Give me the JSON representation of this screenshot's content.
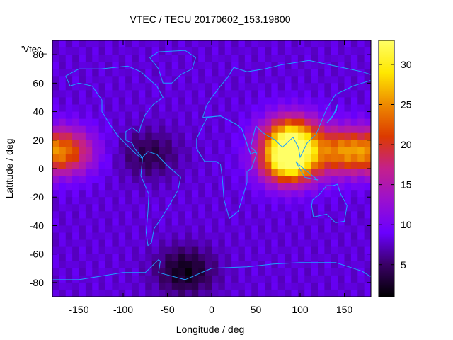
{
  "chart_data": {
    "type": "heatmap",
    "title": "VTEC / TECU 20170602_153.19800",
    "xlabel": "Longitude / deg",
    "ylabel": "Latitude / deg",
    "corner_label": "'Vtec_",
    "xlim": [
      -180,
      180
    ],
    "ylim": [
      -90,
      90
    ],
    "x_ticks": [
      -150,
      -100,
      -50,
      0,
      50,
      100,
      150
    ],
    "y_ticks": [
      -80,
      -60,
      -40,
      -20,
      0,
      20,
      40,
      60,
      80
    ],
    "colorbar": {
      "range": [
        1,
        33
      ],
      "ticks": [
        5,
        10,
        15,
        20,
        25,
        30
      ],
      "palette": [
        "#000000",
        "#3a0066",
        "#6a00ff",
        "#9a10cf",
        "#c4208c",
        "#dc3a00",
        "#ee8a00",
        "#ffe800",
        "#ffff66"
      ]
    },
    "features": [
      {
        "lon": -165,
        "lat": 12,
        "vtec": 22
      },
      {
        "lon": 88,
        "lat": 5,
        "vtec": 32
      },
      {
        "lon": 90,
        "lat": 22,
        "vtec": 27
      },
      {
        "lon": 150,
        "lat": 12,
        "vtec": 23
      },
      {
        "lon": -30,
        "lat": -72,
        "vtec": 2
      },
      {
        "lon": -70,
        "lat": 10,
        "vtec": 4
      },
      {
        "lon": 30,
        "lat": 70,
        "vtec": 8
      }
    ],
    "background_vtec": 8,
    "coastline_color": "#1ea0ff"
  }
}
